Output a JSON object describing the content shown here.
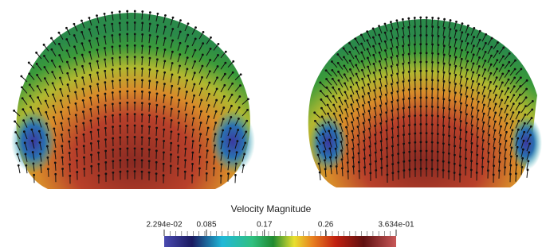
{
  "chart_data": {
    "type": "colorbar",
    "title": "Velocity Magnitude",
    "ticks": [
      {
        "value": 0.02294,
        "label": "2.294e-02"
      },
      0.085,
      0.17,
      0.26,
      {
        "value": 0.3634,
        "label": "3.634e-01"
      }
    ]
  }
}
